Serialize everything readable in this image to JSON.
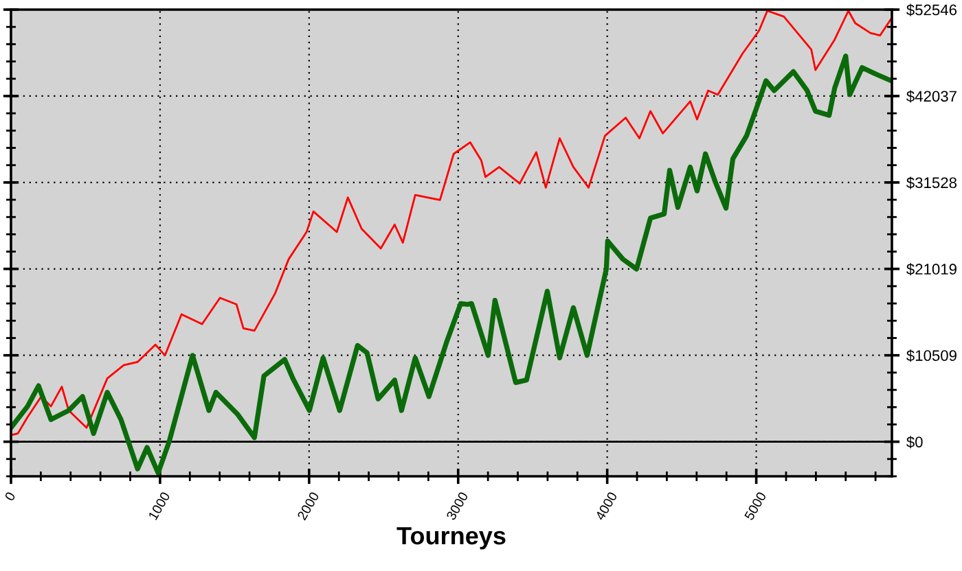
{
  "chart_data": {
    "type": "line",
    "xlabel": "Tourneys",
    "xlim": [
      0,
      5910
    ],
    "ylim": [
      -4000,
      52546
    ],
    "xticks": [
      0,
      1000,
      2000,
      3000,
      4000,
      5000
    ],
    "yticks": [
      {
        "value": 0,
        "label": "$0"
      },
      {
        "value": 10509,
        "label": "$10509"
      },
      {
        "value": 21019,
        "label": "$21019"
      },
      {
        "value": 31528,
        "label": "$31528"
      },
      {
        "value": 42037,
        "label": "$42037"
      },
      {
        "value": 52546,
        "label": "$52546"
      }
    ],
    "grid": true,
    "line_style": "solid",
    "marker": "none",
    "ref_lines": [
      {
        "axis": "y",
        "value": 0,
        "color": "#000000",
        "line_style": "solid"
      }
    ],
    "series": [
      {
        "color": "#ff0000",
        "x": [
          0,
          46,
          111,
          203,
          268,
          341,
          387,
          507,
          646,
          756,
          849,
          969,
          1033,
          1144,
          1282,
          1402,
          1513,
          1559,
          1633,
          1771,
          1863,
          1983,
          2029,
          2186,
          2260,
          2352,
          2481,
          2574,
          2629,
          2712,
          2878,
          2970,
          3081,
          3155,
          3183,
          3275,
          3413,
          3524,
          3588,
          3681,
          3773,
          3875,
          3985,
          4124,
          4216,
          4290,
          4373,
          4557,
          4603,
          4677,
          4742,
          4908,
          5019,
          5074,
          5185,
          5369,
          5397,
          5526,
          5618,
          5664,
          5766,
          5830,
          5904
        ],
        "values": [
          800,
          1000,
          3000,
          5500,
          4300,
          6700,
          3800,
          1700,
          7700,
          9300,
          9700,
          11800,
          10500,
          15500,
          14300,
          17500,
          16700,
          13800,
          13500,
          18000,
          22200,
          25500,
          28000,
          25500,
          29700,
          25900,
          23500,
          26400,
          24200,
          30000,
          29400,
          35000,
          36400,
          34200,
          32200,
          33400,
          31400,
          35200,
          30900,
          36900,
          33400,
          30900,
          37200,
          39400,
          36900,
          40200,
          37500,
          41400,
          39200,
          42700,
          42200,
          47200,
          50000,
          52400,
          51700,
          47700,
          45200,
          48900,
          52400,
          50900,
          49700,
          49400,
          51400
        ]
      },
      {
        "color": "#0b6b0b",
        "x": [
          0,
          111,
          185,
          268,
          387,
          480,
          554,
          646,
          738,
          849,
          913,
          987,
          1061,
          1218,
          1328,
          1375,
          1522,
          1633,
          1697,
          1836,
          1891,
          2002,
          2094,
          2205,
          2325,
          2389,
          2463,
          2574,
          2620,
          2712,
          2804,
          2924,
          3017,
          3063,
          3090,
          3201,
          3247,
          3386,
          3459,
          3598,
          3681,
          3773,
          3865,
          3994,
          4003,
          4105,
          4197,
          4290,
          4382,
          4419,
          4474,
          4557,
          4603,
          4659,
          4723,
          4797,
          4843,
          4935,
          5000,
          5065,
          5120,
          5249,
          5341,
          5397,
          5489,
          5526,
          5600,
          5627,
          5710,
          5803,
          5904
        ],
        "values": [
          1700,
          4300,
          6800,
          2700,
          3800,
          5500,
          1000,
          6000,
          2700,
          -3300,
          -700,
          -3800,
          0,
          10500,
          3800,
          6000,
          3300,
          500,
          8000,
          10000,
          7700,
          3800,
          10200,
          3800,
          11700,
          10800,
          5200,
          7500,
          3800,
          10200,
          5500,
          12200,
          16800,
          16700,
          16800,
          10500,
          17200,
          7200,
          7500,
          18300,
          10200,
          16300,
          10500,
          21000,
          24400,
          22200,
          21000,
          27200,
          27700,
          33000,
          28500,
          33400,
          30500,
          35000,
          31700,
          28400,
          34400,
          37200,
          40500,
          43900,
          42700,
          45000,
          42700,
          40200,
          39700,
          43000,
          46900,
          42200,
          45500,
          44700,
          43900
        ]
      }
    ]
  }
}
